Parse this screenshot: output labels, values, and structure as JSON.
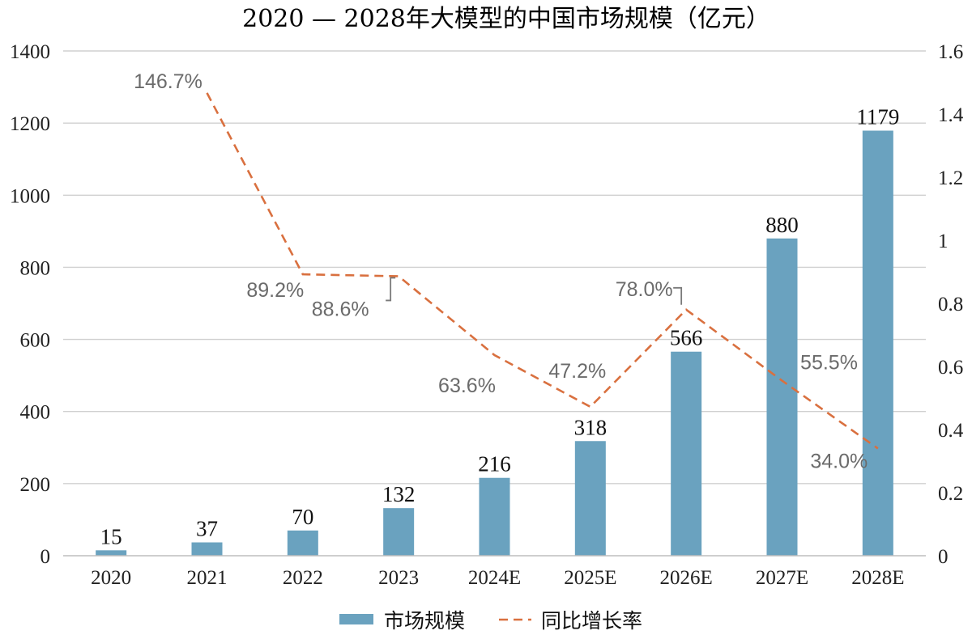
{
  "chart_data": {
    "type": "bar",
    "title": "2020 — 2028年大模型的中国市场规模（亿元）",
    "categories": [
      "2020",
      "2021",
      "2022",
      "2023",
      "2024E",
      "2025E",
      "2026E",
      "2027E",
      "2028E"
    ],
    "series": [
      {
        "name": "市场规模",
        "type": "bar",
        "axis": "left",
        "color": "#6aa2bf",
        "values": [
          15,
          37,
          70,
          132,
          216,
          318,
          566,
          880,
          1179
        ],
        "value_labels": [
          "15",
          "37",
          "70",
          "132",
          "216",
          "318",
          "566",
          "880",
          "1179"
        ]
      },
      {
        "name": "同比增长率",
        "type": "line",
        "style": "dashed",
        "axis": "right",
        "color": "#d9703f",
        "values": [
          null,
          1.467,
          0.892,
          0.886,
          0.636,
          0.472,
          0.78,
          0.555,
          0.34
        ],
        "value_labels": [
          "",
          "146.7%",
          "89.2%",
          "88.6%",
          "63.6%",
          "47.2%",
          "78.0%",
          "55.5%",
          "34.0%"
        ]
      }
    ],
    "y_left": {
      "ylim": [
        0,
        1400
      ],
      "ticks": [
        0,
        200,
        400,
        600,
        800,
        1000,
        1200,
        1400
      ],
      "tick_labels": [
        "0",
        "200",
        "400",
        "600",
        "800",
        "1000",
        "1200",
        "1400"
      ]
    },
    "y_right": {
      "ylim": [
        0,
        1.6
      ],
      "ticks": [
        0,
        0.2,
        0.4,
        0.6,
        0.8,
        1.0,
        1.2,
        1.4,
        1.6
      ],
      "tick_labels": [
        "0",
        "0.2",
        "0.4",
        "0.6",
        "0.8",
        "1",
        "1.2",
        "1.4",
        "1.6"
      ]
    },
    "grid": true,
    "legend": {
      "position": "bottom",
      "items": [
        "市场规模",
        "同比增长率"
      ]
    }
  }
}
